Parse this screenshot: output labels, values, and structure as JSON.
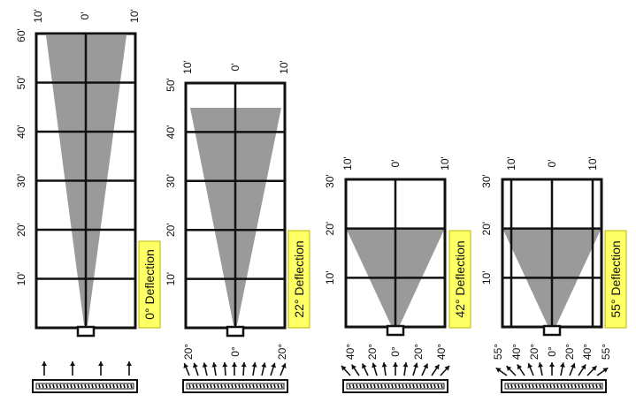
{
  "colors": {
    "grid": "#111111",
    "cone": "#9a9a9a",
    "highlight": "#ffff66",
    "highlight_border": "#b8b800"
  },
  "icons": {
    "arrow": "up-arrow-icon",
    "diffuser": "diffuser-icon",
    "outlet": "outlet-icon"
  },
  "panels": [
    {
      "id": "p0",
      "deflection_label": "0° Deflection",
      "top_labels": [
        "10'",
        "0'",
        "10'"
      ],
      "side_labels": [
        "60'",
        "50'",
        "40'",
        "30'",
        "20'",
        "10'"
      ],
      "angle_labels": [],
      "arrow_angles": [
        0,
        0,
        0,
        0
      ]
    },
    {
      "id": "p22",
      "deflection_label": "22° Deflection",
      "top_labels": [
        "10'",
        "0'",
        "10'"
      ],
      "side_labels": [
        "50'",
        "40'",
        "30'",
        "20'",
        "10'"
      ],
      "angle_labels": [
        "20°",
        "0°",
        "20°"
      ],
      "arrow_angles": [
        -22,
        -18,
        -13,
        -9,
        -4,
        0,
        4,
        9,
        13,
        18,
        22
      ]
    },
    {
      "id": "p42",
      "deflection_label": "42° Deflection",
      "top_labels": [
        "10'",
        "0'",
        "10'"
      ],
      "side_labels": [
        "30'",
        "20'",
        "10'"
      ],
      "angle_labels": [
        "40°",
        "20°",
        "0°",
        "20°",
        "40°"
      ],
      "arrow_angles": [
        -42,
        -34,
        -25,
        -17,
        -8,
        0,
        8,
        17,
        25,
        34,
        42
      ]
    },
    {
      "id": "p55",
      "deflection_label": "55° Deflection",
      "top_labels": [
        "10'",
        "0'",
        "10'"
      ],
      "side_labels": [
        "30'",
        "20'",
        "10'"
      ],
      "angle_labels": [
        "55°",
        "40°",
        "20°",
        "0°",
        "20°",
        "40°",
        "55°"
      ],
      "arrow_angles": [
        -55,
        -44,
        -33,
        -22,
        -11,
        0,
        11,
        22,
        33,
        44,
        55
      ]
    }
  ]
}
